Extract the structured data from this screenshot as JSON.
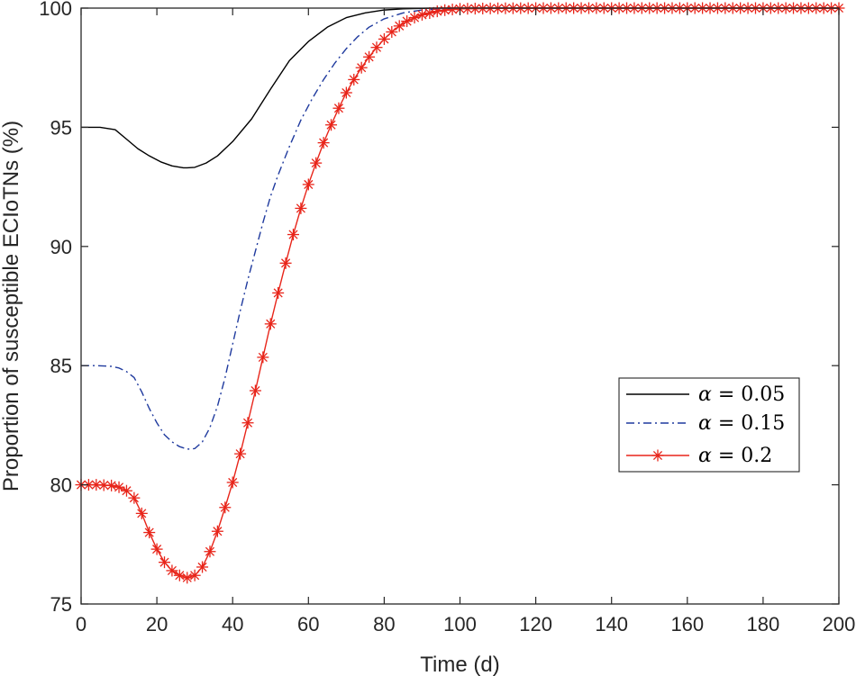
{
  "chart_data": {
    "type": "line",
    "title": "",
    "xlabel": "Time (d)",
    "ylabel": "Proportion of susceptible ECIoTNs (%)",
    "xlim": [
      0,
      200
    ],
    "ylim": [
      75,
      100
    ],
    "xticks": [
      0,
      20,
      40,
      60,
      80,
      100,
      120,
      140,
      160,
      180,
      200
    ],
    "yticks": [
      75,
      80,
      85,
      90,
      95,
      100
    ],
    "grid": false,
    "legend_position": "right-center",
    "marker_step": 2,
    "series": [
      {
        "name": "α = 0.05",
        "legend_symbol": "α",
        "legend_rest": " = 0.05",
        "color": "#000000",
        "style": "solid",
        "marker": "none",
        "x": [
          0,
          5,
          9,
          12,
          15,
          18,
          21,
          24,
          27,
          28,
          30,
          33,
          36,
          40,
          45,
          50,
          55,
          60,
          65,
          70,
          75,
          80,
          85,
          90,
          95,
          100,
          110,
          120,
          140,
          160,
          180,
          200
        ],
        "y": [
          95.0,
          95.0,
          94.9,
          94.5,
          94.1,
          93.8,
          93.55,
          93.38,
          93.3,
          93.3,
          93.32,
          93.5,
          93.8,
          94.4,
          95.35,
          96.6,
          97.8,
          98.6,
          99.2,
          99.6,
          99.8,
          99.92,
          99.97,
          99.99,
          100.0,
          100.0,
          100.0,
          100.0,
          100.0,
          100.0,
          100.0,
          100.0
        ]
      },
      {
        "name": "α = 0.15",
        "legend_symbol": "α",
        "legend_rest": " = 0.15",
        "color": "#1f3a9e",
        "style": "dashdot",
        "marker": "none",
        "x": [
          0,
          4,
          8,
          10,
          12,
          14,
          16,
          18,
          20,
          22,
          24,
          26,
          28,
          29,
          30,
          32,
          34,
          36,
          38,
          40,
          42,
          44,
          46,
          48,
          50,
          52,
          55,
          58,
          61,
          64,
          67,
          70,
          73,
          76,
          80,
          85,
          90,
          95,
          100,
          110,
          120,
          140,
          160,
          180,
          200
        ],
        "y": [
          85.0,
          85.0,
          84.97,
          84.9,
          84.75,
          84.5,
          83.9,
          83.2,
          82.6,
          82.1,
          81.8,
          81.6,
          81.5,
          81.5,
          81.52,
          81.8,
          82.4,
          83.3,
          84.5,
          85.9,
          87.3,
          88.6,
          89.8,
          91.0,
          92.1,
          93.0,
          94.2,
          95.3,
          96.2,
          97.0,
          97.7,
          98.3,
          98.8,
          99.2,
          99.55,
          99.8,
          99.92,
          99.97,
          99.99,
          100.0,
          100.0,
          100.0,
          100.0,
          100.0,
          100.0
        ]
      },
      {
        "name": "α = 0.2",
        "legend_symbol": "α",
        "legend_rest": " = 0.2",
        "color": "#e8251a",
        "style": "solid",
        "marker": "asterisk",
        "x": [
          0,
          4,
          8,
          10,
          12,
          14,
          16,
          18,
          20,
          22,
          24,
          26,
          28,
          30,
          32,
          34,
          36,
          38,
          40,
          42,
          44,
          46,
          48,
          50,
          52,
          54,
          56,
          58,
          60,
          62,
          64,
          66,
          68,
          70,
          72,
          74,
          76,
          78,
          80,
          82,
          84,
          86,
          88,
          90,
          95,
          100,
          110,
          120,
          140,
          160,
          180,
          200
        ],
        "y": [
          80.0,
          80.0,
          79.97,
          79.9,
          79.75,
          79.45,
          78.8,
          78.0,
          77.3,
          76.75,
          76.4,
          76.2,
          76.1,
          76.2,
          76.55,
          77.2,
          78.05,
          79.05,
          80.1,
          81.3,
          82.6,
          83.95,
          85.35,
          86.75,
          88.05,
          89.3,
          90.5,
          91.6,
          92.6,
          93.5,
          94.35,
          95.1,
          95.8,
          96.45,
          97.0,
          97.5,
          97.95,
          98.35,
          98.7,
          99.0,
          99.25,
          99.45,
          99.6,
          99.72,
          99.9,
          99.97,
          99.99,
          100.0,
          100.0,
          100.0,
          100.0,
          100.0
        ]
      }
    ]
  }
}
